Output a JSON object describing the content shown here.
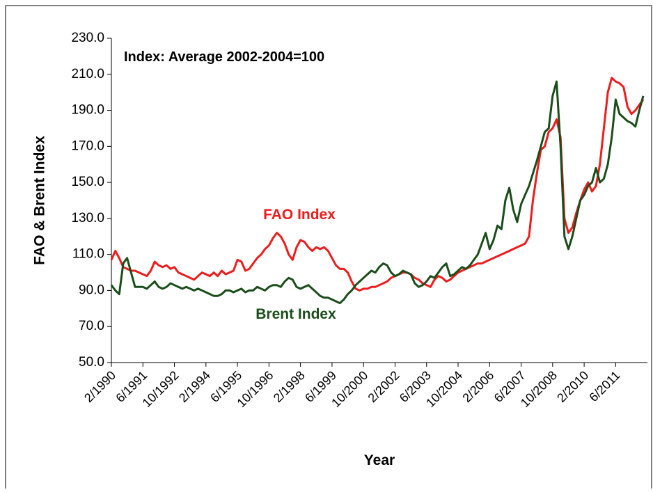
{
  "chart_data": {
    "type": "line",
    "annotation": "Index: Average 2002-2004=100",
    "y_label": "FAO & Brent Index",
    "x_label": "Year",
    "ylim": [
      50,
      230
    ],
    "yticks": [
      {
        "value": 50,
        "label": "50.0"
      },
      {
        "value": 70,
        "label": "70.0"
      },
      {
        "value": 90,
        "label": "90.0"
      },
      {
        "value": 110,
        "label": "110.0"
      },
      {
        "value": 130,
        "label": "130.0"
      },
      {
        "value": 150,
        "label": "150.0"
      },
      {
        "value": 170,
        "label": "170.0"
      },
      {
        "value": 190,
        "label": "190.0"
      },
      {
        "value": 210,
        "label": "210.0"
      },
      {
        "value": 230,
        "label": "230.0"
      }
    ],
    "categories": [
      "2/1990",
      null,
      null,
      null,
      null,
      null,
      null,
      null,
      "6/1991",
      null,
      null,
      null,
      null,
      null,
      null,
      null,
      "10/1992",
      null,
      null,
      null,
      null,
      null,
      null,
      null,
      "2/1994",
      null,
      null,
      null,
      null,
      null,
      null,
      null,
      "6/1995",
      null,
      null,
      null,
      null,
      null,
      null,
      null,
      "10/1996",
      null,
      null,
      null,
      null,
      null,
      null,
      null,
      "2/1998",
      null,
      null,
      null,
      null,
      null,
      null,
      null,
      "6/1999",
      null,
      null,
      null,
      null,
      null,
      null,
      null,
      "10/2000",
      null,
      null,
      null,
      null,
      null,
      null,
      null,
      "2/2002",
      null,
      null,
      null,
      null,
      null,
      null,
      null,
      "6/2003",
      null,
      null,
      null,
      null,
      null,
      null,
      null,
      "10/2004",
      null,
      null,
      null,
      null,
      null,
      null,
      null,
      "2/2006",
      null,
      null,
      null,
      null,
      null,
      null,
      null,
      "6/2007",
      null,
      null,
      null,
      null,
      null,
      null,
      null,
      "10/2008",
      null,
      null,
      null,
      null,
      null,
      null,
      null,
      "2/2010",
      null,
      null,
      null,
      null,
      null,
      null,
      null,
      "6/2011",
      null,
      null,
      null,
      null,
      null,
      null,
      null
    ],
    "series": [
      {
        "name": "FAO Index",
        "color": "#ee1c1c",
        "values": [
          107,
          112,
          108,
          103,
          102,
          101,
          101,
          100,
          99,
          98,
          101,
          106,
          104,
          103,
          104,
          102,
          103,
          100,
          99,
          98,
          97,
          96,
          98,
          100,
          99,
          98,
          100,
          98,
          101,
          99,
          100,
          101,
          107,
          106,
          101,
          102,
          105,
          108,
          110,
          113,
          115,
          119,
          122,
          120,
          116,
          110,
          107,
          114,
          118,
          117,
          114,
          112,
          114,
          113,
          114,
          112,
          108,
          104,
          102,
          102,
          100,
          95,
          91,
          90,
          91,
          91,
          92,
          92,
          93,
          94,
          95,
          97,
          98,
          99,
          100,
          100,
          99,
          97,
          96,
          94,
          93,
          92,
          96,
          98,
          97,
          95,
          96,
          98,
          100,
          101,
          102,
          103,
          104,
          105,
          105,
          106,
          107,
          108,
          109,
          110,
          111,
          112,
          113,
          114,
          115,
          116,
          120,
          140,
          155,
          168,
          170,
          178,
          180,
          185,
          175,
          130,
          122,
          125,
          133,
          140,
          146,
          150,
          145,
          148,
          160,
          180,
          200,
          208,
          206,
          205,
          203,
          192,
          188,
          190,
          193,
          196
        ]
      },
      {
        "name": "Brent Index",
        "color": "#1b4d1b",
        "values": [
          93,
          90,
          88,
          105,
          108,
          100,
          92,
          92,
          92,
          91,
          93,
          95,
          92,
          91,
          92,
          94,
          93,
          92,
          91,
          92,
          91,
          90,
          91,
          90,
          89,
          88,
          87,
          87,
          88,
          90,
          90,
          89,
          90,
          91,
          89,
          90,
          90,
          92,
          91,
          90,
          92,
          93,
          93,
          92,
          95,
          97,
          96,
          92,
          91,
          92,
          93,
          91,
          89,
          87,
          86,
          86,
          85,
          84,
          83,
          85,
          88,
          90,
          93,
          95,
          97,
          99,
          101,
          100,
          103,
          105,
          104,
          100,
          98,
          99,
          101,
          100,
          99,
          94,
          92,
          93,
          95,
          98,
          97,
          100,
          103,
          105,
          98,
          99,
          101,
          103,
          102,
          104,
          107,
          110,
          116,
          122,
          113,
          118,
          126,
          124,
          140,
          147,
          135,
          128,
          138,
          143,
          148,
          155,
          162,
          170,
          178,
          180,
          198,
          206,
          170,
          120,
          113,
          120,
          130,
          140,
          143,
          148,
          150,
          158,
          150,
          152,
          160,
          175,
          196,
          188,
          186,
          184,
          183,
          181,
          190,
          198
        ]
      }
    ]
  }
}
